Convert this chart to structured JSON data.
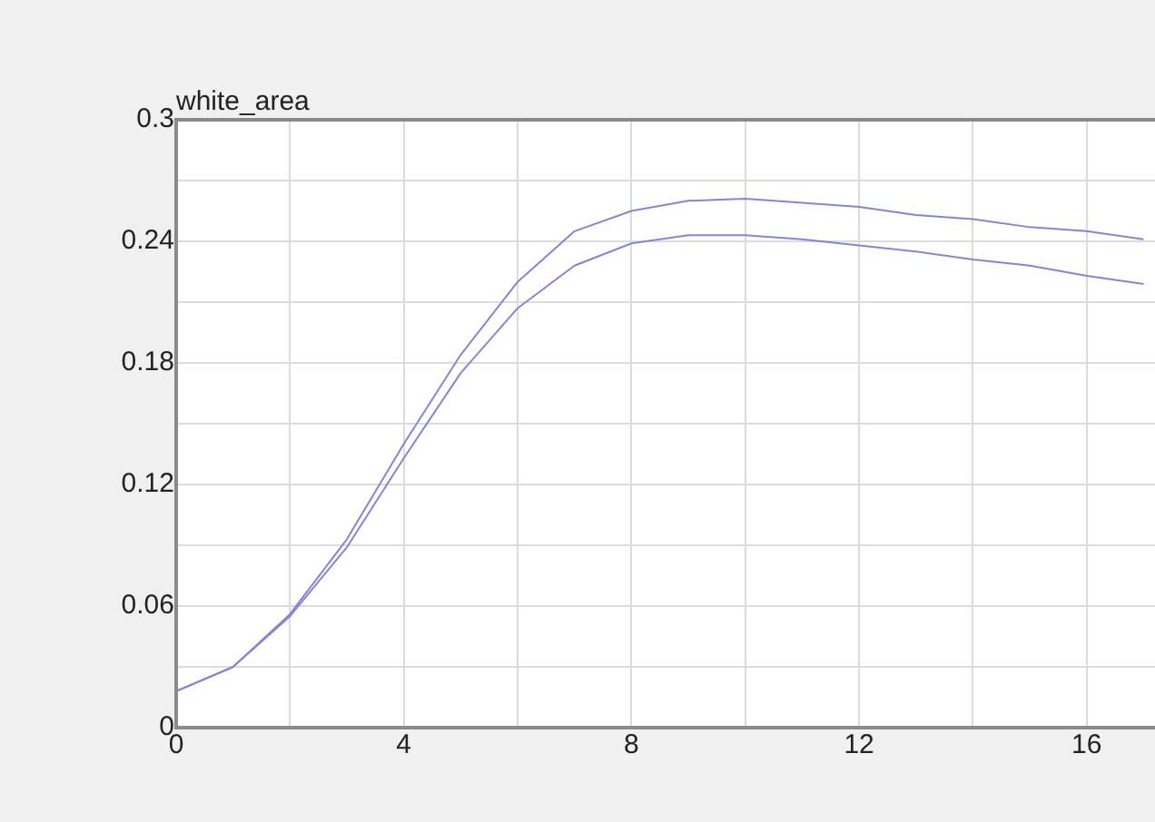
{
  "chart_data": {
    "type": "line",
    "title": "white_area",
    "x": [
      0,
      1,
      2,
      3,
      4,
      5,
      6,
      7,
      8,
      9,
      10,
      11,
      12,
      13,
      14,
      15,
      16,
      17
    ],
    "series": [
      {
        "color": "#8585d6",
        "values": [
          0.018,
          0.03,
          0.056,
          0.093,
          0.14,
          0.184,
          0.22,
          0.245,
          0.255,
          0.26,
          0.261,
          0.259,
          0.257,
          0.253,
          0.251,
          0.247,
          0.245,
          0.241
        ]
      },
      {
        "color": "#8585d6",
        "values": [
          0.018,
          0.03,
          0.055,
          0.089,
          0.133,
          0.175,
          0.207,
          0.228,
          0.239,
          0.243,
          0.243,
          0.241,
          0.238,
          0.235,
          0.231,
          0.228,
          0.223,
          0.219
        ]
      }
    ],
    "xlim": [
      0,
      17.2
    ],
    "xticks": [
      0,
      {
        "value": 2,
        "label": null
      },
      4,
      {
        "value": 6,
        "label": null
      },
      8,
      {
        "value": 10,
        "label": null
      },
      12,
      {
        "value": 14,
        "label": null
      },
      16
    ],
    "ylim": [
      0,
      0.3
    ],
    "yticks": [
      0,
      {
        "value": 0.03,
        "label": null
      },
      0.06,
      {
        "value": 0.09,
        "label": null
      },
      0.12,
      {
        "value": 0.15,
        "label": null
      },
      0.18,
      {
        "value": 0.21,
        "label": null
      },
      0.24,
      {
        "value": 0.27,
        "label": null
      },
      0.3
    ],
    "grid": true,
    "marker": "none",
    "line_style": "solid"
  }
}
